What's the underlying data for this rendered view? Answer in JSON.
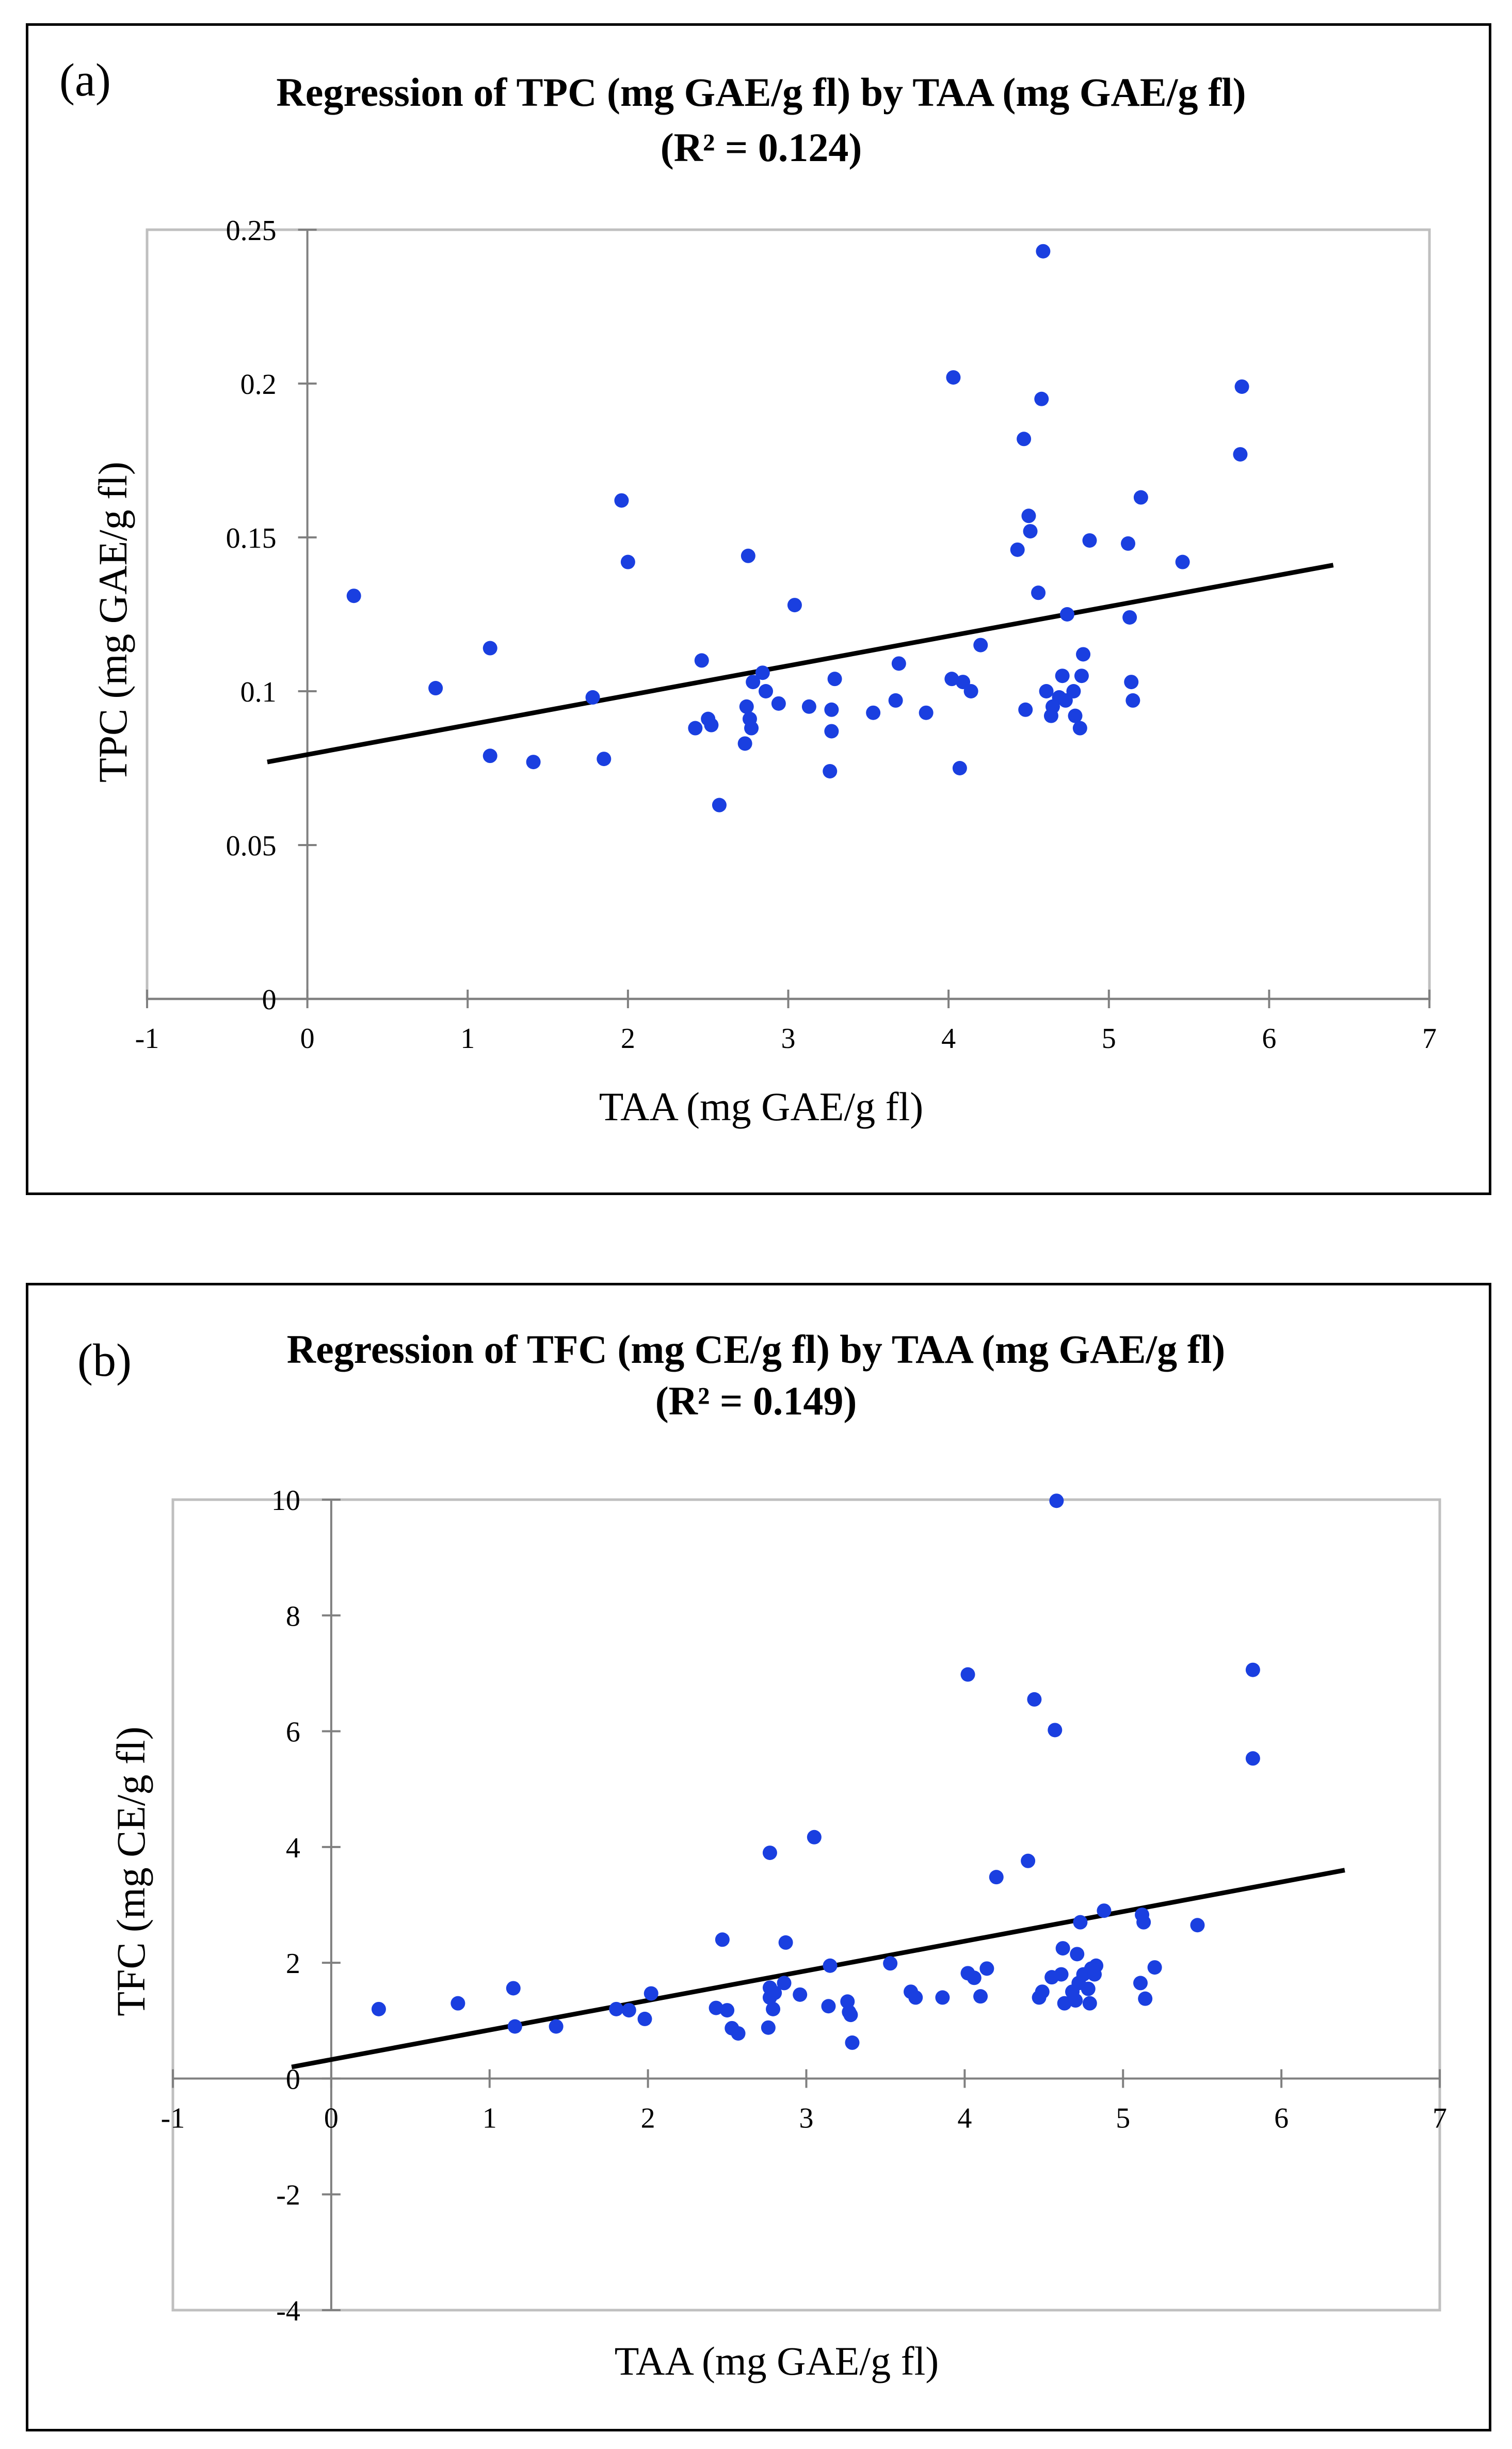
{
  "chart_data": [
    {
      "type": "scatter",
      "panel_label": "(a)",
      "title": "Regression of TPC (mg GAE/g fl) by TAA (mg GAE/g fl)",
      "subtitle": "(R² = 0.124)",
      "xlabel": "TAA (mg GAE/g fl)",
      "ylabel": "TPC (mg GAE/g fl)",
      "xlim": [
        -1,
        7
      ],
      "ylim": [
        0,
        0.25
      ],
      "xticks": [
        "-1",
        "0",
        "1",
        "2",
        "3",
        "4",
        "5",
        "6",
        "7"
      ],
      "yticks": [
        "0",
        "0.05",
        "0.1",
        "0.15",
        "0.2",
        "0.25"
      ],
      "grid": false,
      "marker_color": "#1a3fe0",
      "trendline": {
        "x": [
          -0.25,
          6.4
        ],
        "y": [
          0.077,
          0.141
        ],
        "color": "#000000"
      },
      "points": [
        [
          0.29,
          0.131
        ],
        [
          0.8,
          0.101
        ],
        [
          1.14,
          0.114
        ],
        [
          1.14,
          0.079
        ],
        [
          1.41,
          0.077
        ],
        [
          1.78,
          0.098
        ],
        [
          1.85,
          0.078
        ],
        [
          1.96,
          0.162
        ],
        [
          2.0,
          0.142
        ],
        [
          2.42,
          0.088
        ],
        [
          2.46,
          0.11
        ],
        [
          2.5,
          0.091
        ],
        [
          2.52,
          0.089
        ],
        [
          2.57,
          0.063
        ],
        [
          2.73,
          0.083
        ],
        [
          2.74,
          0.095
        ],
        [
          2.75,
          0.144
        ],
        [
          2.76,
          0.091
        ],
        [
          2.77,
          0.088
        ],
        [
          2.78,
          0.103
        ],
        [
          2.84,
          0.106
        ],
        [
          2.86,
          0.1
        ],
        [
          2.94,
          0.096
        ],
        [
          3.04,
          0.128
        ],
        [
          3.13,
          0.095
        ],
        [
          3.26,
          0.074
        ],
        [
          3.27,
          0.087
        ],
        [
          3.27,
          0.094
        ],
        [
          3.29,
          0.104
        ],
        [
          3.53,
          0.093
        ],
        [
          3.67,
          0.097
        ],
        [
          3.69,
          0.109
        ],
        [
          3.86,
          0.093
        ],
        [
          4.02,
          0.104
        ],
        [
          4.03,
          0.202
        ],
        [
          4.07,
          0.075
        ],
        [
          4.09,
          0.103
        ],
        [
          4.14,
          0.1
        ],
        [
          4.2,
          0.115
        ],
        [
          4.43,
          0.146
        ],
        [
          4.47,
          0.182
        ],
        [
          4.48,
          0.094
        ],
        [
          4.5,
          0.157
        ],
        [
          4.51,
          0.152
        ],
        [
          4.56,
          0.132
        ],
        [
          4.58,
          0.195
        ],
        [
          4.59,
          0.243
        ],
        [
          4.61,
          0.1
        ],
        [
          4.64,
          0.092
        ],
        [
          4.65,
          0.095
        ],
        [
          4.69,
          0.098
        ],
        [
          4.71,
          0.105
        ],
        [
          4.73,
          0.097
        ],
        [
          4.74,
          0.125
        ],
        [
          4.78,
          0.1
        ],
        [
          4.79,
          0.092
        ],
        [
          4.82,
          0.088
        ],
        [
          4.83,
          0.105
        ],
        [
          4.84,
          0.112
        ],
        [
          4.88,
          0.149
        ],
        [
          5.12,
          0.148
        ],
        [
          5.13,
          0.124
        ],
        [
          5.14,
          0.103
        ],
        [
          5.15,
          0.097
        ],
        [
          5.2,
          0.163
        ],
        [
          5.46,
          0.142
        ],
        [
          5.82,
          0.177
        ],
        [
          5.83,
          0.199
        ]
      ]
    },
    {
      "type": "scatter",
      "panel_label": "(b)",
      "title": "Regression of TFC (mg CE/g fl) by TAA (mg GAE/g fl)",
      "subtitle": "(R² = 0.149)",
      "xlabel": "TAA (mg GAE/g fl)",
      "ylabel": "TFC (mg CE/g fl)",
      "xlim": [
        -1,
        7
      ],
      "ylim": [
        -4,
        10
      ],
      "xticks": [
        "-1",
        "0",
        "1",
        "2",
        "3",
        "4",
        "5",
        "6",
        "7"
      ],
      "yticks": [
        "-4",
        "-2",
        "0",
        "2",
        "4",
        "6",
        "8",
        "10"
      ],
      "grid": false,
      "marker_color": "#1a3fe0",
      "trendline": {
        "x": [
          -0.25,
          6.4
        ],
        "y": [
          0.2,
          3.6
        ],
        "color": "#000000"
      },
      "points": [
        [
          0.3,
          1.2
        ],
        [
          0.8,
          1.3
        ],
        [
          1.15,
          1.56
        ],
        [
          1.16,
          0.9
        ],
        [
          1.42,
          0.9
        ],
        [
          1.8,
          1.2
        ],
        [
          1.88,
          1.18
        ],
        [
          1.98,
          1.03
        ],
        [
          2.02,
          1.47
        ],
        [
          2.43,
          1.22
        ],
        [
          2.47,
          2.4
        ],
        [
          2.5,
          1.18
        ],
        [
          2.53,
          0.87
        ],
        [
          2.57,
          0.78
        ],
        [
          2.76,
          0.88
        ],
        [
          2.77,
          1.4
        ],
        [
          2.77,
          1.57
        ],
        [
          2.77,
          3.9
        ],
        [
          2.79,
          1.2
        ],
        [
          2.8,
          1.48
        ],
        [
          2.86,
          1.65
        ],
        [
          2.87,
          2.35
        ],
        [
          2.96,
          1.45
        ],
        [
          3.05,
          4.17
        ],
        [
          3.14,
          1.25
        ],
        [
          3.15,
          1.95
        ],
        [
          3.26,
          1.33
        ],
        [
          3.27,
          1.15
        ],
        [
          3.28,
          1.1
        ],
        [
          3.29,
          0.62
        ],
        [
          3.53,
          1.99
        ],
        [
          3.66,
          1.5
        ],
        [
          3.69,
          1.4
        ],
        [
          3.86,
          1.4
        ],
        [
          4.02,
          1.82
        ],
        [
          4.02,
          6.98
        ],
        [
          4.06,
          1.74
        ],
        [
          4.1,
          1.42
        ],
        [
          4.14,
          1.9
        ],
        [
          4.2,
          3.48
        ],
        [
          4.4,
          3.76
        ],
        [
          4.44,
          6.55
        ],
        [
          4.47,
          1.4
        ],
        [
          4.49,
          1.5
        ],
        [
          4.55,
          1.75
        ],
        [
          4.57,
          6.02
        ],
        [
          4.58,
          9.98
        ],
        [
          4.61,
          1.8
        ],
        [
          4.62,
          2.25
        ],
        [
          4.63,
          1.3
        ],
        [
          4.68,
          1.5
        ],
        [
          4.7,
          1.35
        ],
        [
          4.71,
          2.15
        ],
        [
          4.72,
          1.65
        ],
        [
          4.73,
          2.7
        ],
        [
          4.75,
          1.8
        ],
        [
          4.78,
          1.55
        ],
        [
          4.79,
          1.3
        ],
        [
          4.8,
          1.9
        ],
        [
          4.82,
          1.8
        ],
        [
          4.83,
          1.95
        ],
        [
          4.88,
          2.9
        ],
        [
          5.11,
          1.65
        ],
        [
          5.12,
          2.83
        ],
        [
          5.13,
          2.7
        ],
        [
          5.14,
          1.38
        ],
        [
          5.2,
          1.92
        ],
        [
          5.47,
          2.65
        ],
        [
          5.82,
          7.06
        ],
        [
          5.82,
          5.53
        ]
      ]
    }
  ]
}
